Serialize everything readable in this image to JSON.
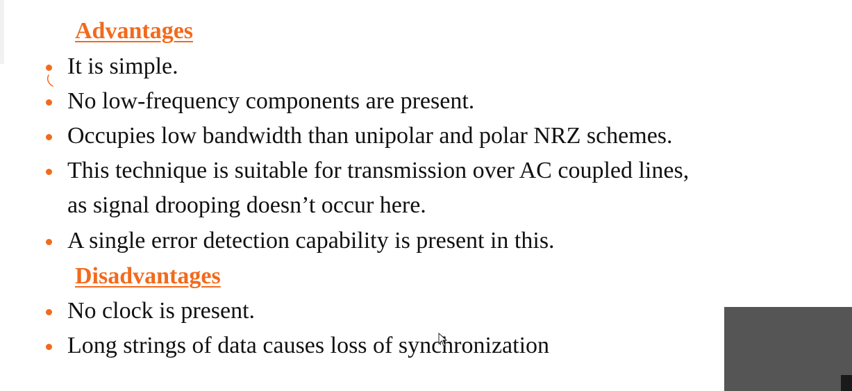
{
  "advantages": {
    "heading": "Advantages",
    "items": [
      "It is simple.",
      "No low-frequency components are present.",
      "Occupies low bandwidth than unipolar and polar NRZ schemes.",
      "This technique is suitable for transmission over AC coupled lines,",
      "A single error detection capability is present in this."
    ],
    "continuation": "as signal drooping doesn’t occur here."
  },
  "disadvantages": {
    "heading": "Disadvantages",
    "items": [
      "No clock is present.",
      "Long strings of data causes loss of synchronization"
    ]
  },
  "colors": {
    "accent": "#f26a1b",
    "text": "#111111",
    "background": "#ffffff",
    "webcam": "#555555"
  }
}
